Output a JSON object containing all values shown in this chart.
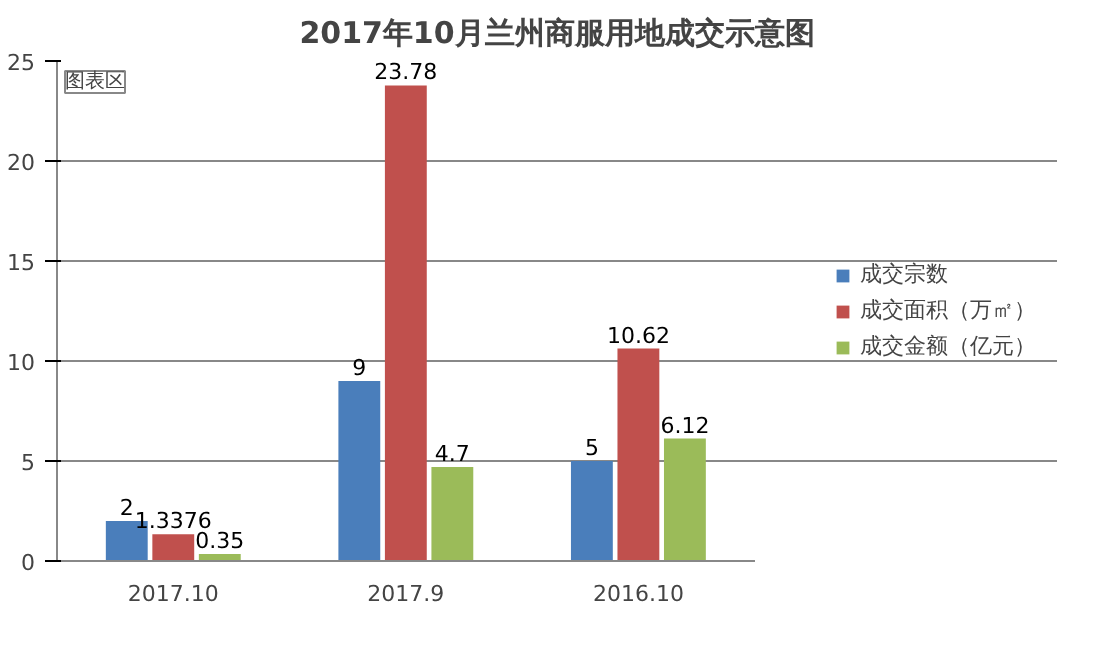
{
  "chart_data": {
    "type": "bar",
    "title": "2017年10月兰州商服用地成交示意图",
    "categories": [
      "2017.10",
      "2017.9",
      "2016.10"
    ],
    "series": [
      {
        "name": "成交宗数",
        "color": "#4a7ebb",
        "values": [
          2,
          9,
          5
        ]
      },
      {
        "name": "成交面积（万㎡）",
        "color": "#c0504d",
        "values": [
          1.3376,
          23.78,
          10.62
        ]
      },
      {
        "name": "成交金额（亿元）",
        "color": "#9bbb59",
        "values": [
          0.35,
          4.7,
          6.12
        ]
      }
    ],
    "ylim": [
      0,
      25
    ],
    "yticks": [
      0,
      5,
      10,
      15,
      20,
      25
    ],
    "grid": "y",
    "legend": "right",
    "data_labels": true,
    "annotations": [
      "图表区"
    ]
  }
}
